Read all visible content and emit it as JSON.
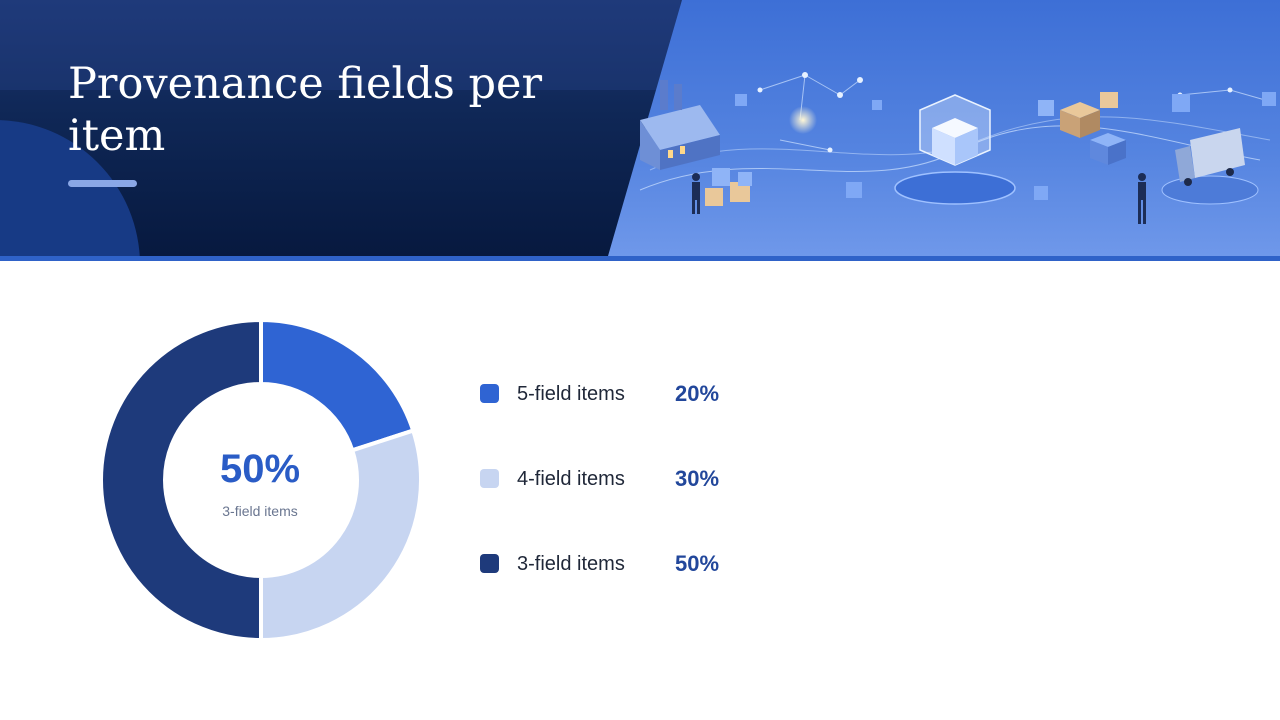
{
  "title": "Provenance fields per item",
  "chart_data": {
    "type": "pie",
    "categories": [
      "5-field items",
      "4-field items",
      "3-field items"
    ],
    "values": [
      20,
      30,
      50
    ],
    "value_labels": [
      "20%",
      "30%",
      "50%"
    ],
    "colors": [
      "#2f64d3",
      "#c7d5f1",
      "#1e3a7b"
    ],
    "center_value": "50%",
    "center_label": "3-field items",
    "legend_position": "right"
  },
  "colors": {
    "header_bg": "#0f2756",
    "accent": "#2f62c8",
    "value_text": "#22479b"
  }
}
